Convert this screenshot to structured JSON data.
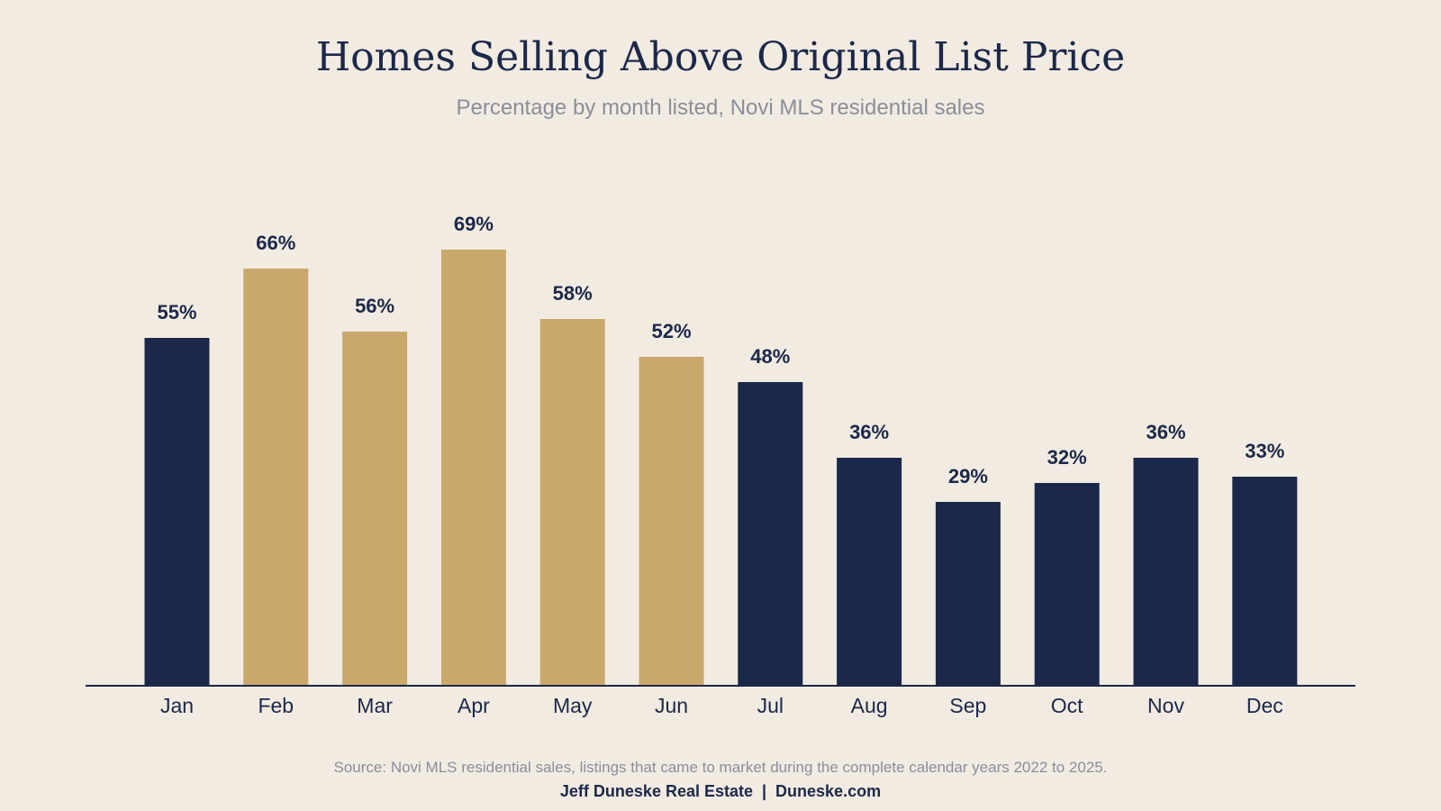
{
  "chart_data": {
    "type": "bar",
    "title": "Homes Selling Above Original List Price",
    "subtitle": "Percentage by month listed, Novi MLS residential sales",
    "categories": [
      "Jan",
      "Feb",
      "Mar",
      "Apr",
      "May",
      "Jun",
      "Jul",
      "Aug",
      "Sep",
      "Oct",
      "Nov",
      "Dec"
    ],
    "values": [
      55,
      66,
      56,
      69,
      58,
      52,
      48,
      36,
      29,
      32,
      36,
      33
    ],
    "value_labels": [
      "55%",
      "66%",
      "56%",
      "69%",
      "58%",
      "52%",
      "48%",
      "36%",
      "29%",
      "32%",
      "36%",
      "33%"
    ],
    "highlighted": [
      false,
      true,
      true,
      true,
      true,
      true,
      false,
      false,
      false,
      false,
      false,
      false
    ],
    "ylim": [
      0,
      69
    ],
    "xlabel": "",
    "ylabel": "",
    "grid": false,
    "legend": "none",
    "colors": {
      "default_bar": "#1b2849",
      "highlight_bar": "#c9a86c",
      "axis": "#1b2849",
      "text_primary": "#1b2849",
      "text_muted": "#8a8e99",
      "background": "#f2ebe2"
    }
  },
  "footer": {
    "source": "Source: Novi MLS residential sales, listings that came to market during the complete calendar years 2022 to 2025.",
    "credit": "Jeff Duneske Real Estate  |  Duneske.com"
  }
}
